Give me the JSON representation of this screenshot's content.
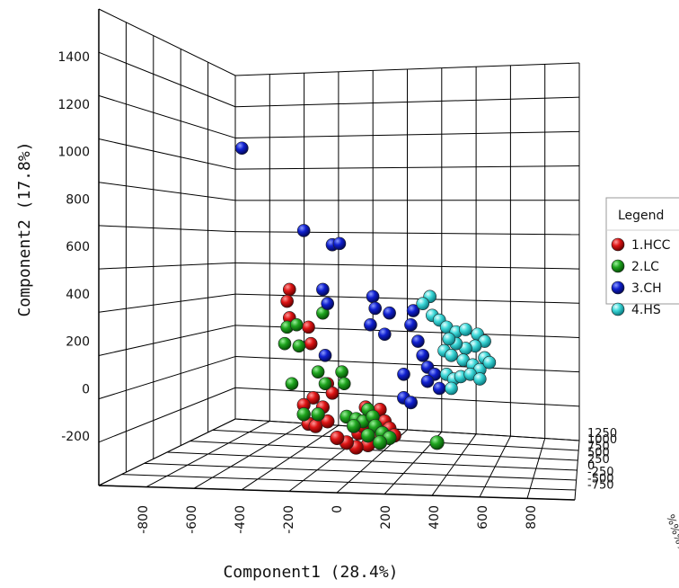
{
  "chart_data": {
    "type": "scatter",
    "subtype": "3d-scatter",
    "title": "",
    "xlabel": "Component1 (28.4%)",
    "ylabel": "Component2 (17.8%)",
    "zlabel": "",
    "x_ticks": [
      "-800",
      "-600",
      "-400",
      "-200",
      "0",
      "200",
      "400",
      "600",
      "800"
    ],
    "y_ticks": [
      "1400",
      "1200",
      "1000",
      "800",
      "600",
      "400",
      "200",
      "0",
      "-200"
    ],
    "z_ticks": [
      "1250",
      "1000",
      "750",
      "500",
      "250",
      "0",
      "-250",
      "-500",
      "-750"
    ],
    "xlim": [
      -900,
      900
    ],
    "ylim": [
      -350,
      1500
    ],
    "grid": true,
    "legend": {
      "title": "Legend",
      "position": "right"
    },
    "series": [
      {
        "name": "1.HCC",
        "color": "#cc0000",
        "points": [
          {
            "x": -180,
            "y": 420
          },
          {
            "x": -190,
            "y": 370
          },
          {
            "x": -180,
            "y": 300
          },
          {
            "x": -100,
            "y": 260
          },
          {
            "x": -90,
            "y": 190
          },
          {
            "x": -20,
            "y": 20
          },
          {
            "x": 0,
            "y": -20
          },
          {
            "x": -80,
            "y": -40
          },
          {
            "x": -40,
            "y": -80
          },
          {
            "x": -120,
            "y": -70
          },
          {
            "x": -100,
            "y": -150
          },
          {
            "x": -70,
            "y": -160
          },
          {
            "x": -20,
            "y": -140
          },
          {
            "x": 140,
            "y": -80
          },
          {
            "x": 160,
            "y": -110
          },
          {
            "x": 200,
            "y": -90
          },
          {
            "x": 220,
            "y": -140
          },
          {
            "x": 240,
            "y": -170
          },
          {
            "x": 260,
            "y": -200
          },
          {
            "x": 180,
            "y": -210
          },
          {
            "x": 150,
            "y": -240
          },
          {
            "x": 100,
            "y": -250
          },
          {
            "x": 60,
            "y": -230
          },
          {
            "x": 20,
            "y": -210
          },
          {
            "x": 110,
            "y": -190
          },
          {
            "x": 130,
            "y": -160
          }
        ]
      },
      {
        "name": "2.LC",
        "color": "#1a9a1a",
        "points": [
          {
            "x": -190,
            "y": 260
          },
          {
            "x": -150,
            "y": 270
          },
          {
            "x": -200,
            "y": 190
          },
          {
            "x": -140,
            "y": 180
          },
          {
            "x": -40,
            "y": 320
          },
          {
            "x": -170,
            "y": 20
          },
          {
            "x": -60,
            "y": 70
          },
          {
            "x": -30,
            "y": 20
          },
          {
            "x": 40,
            "y": 70
          },
          {
            "x": 50,
            "y": 20
          },
          {
            "x": -120,
            "y": -110
          },
          {
            "x": -60,
            "y": -110
          },
          {
            "x": 60,
            "y": -120
          },
          {
            "x": 100,
            "y": -130
          },
          {
            "x": 130,
            "y": -140
          },
          {
            "x": 150,
            "y": -90
          },
          {
            "x": 170,
            "y": -120
          },
          {
            "x": 180,
            "y": -160
          },
          {
            "x": 210,
            "y": -190
          },
          {
            "x": 240,
            "y": -210
          },
          {
            "x": 200,
            "y": -230
          },
          {
            "x": 150,
            "y": -200
          },
          {
            "x": 90,
            "y": -160
          },
          {
            "x": 440,
            "y": -230
          }
        ]
      },
      {
        "name": "3.CH",
        "color": "#0a1ec8",
        "points": [
          {
            "x": -380,
            "y": 1020
          },
          {
            "x": -120,
            "y": 670
          },
          {
            "x": 0,
            "y": 610
          },
          {
            "x": 30,
            "y": 615
          },
          {
            "x": -40,
            "y": 420
          },
          {
            "x": -20,
            "y": 360
          },
          {
            "x": 170,
            "y": 390
          },
          {
            "x": 180,
            "y": 340
          },
          {
            "x": 160,
            "y": 270
          },
          {
            "x": 240,
            "y": 320
          },
          {
            "x": 220,
            "y": 230
          },
          {
            "x": -30,
            "y": 140
          },
          {
            "x": 340,
            "y": 330
          },
          {
            "x": 330,
            "y": 270
          },
          {
            "x": 360,
            "y": 200
          },
          {
            "x": 380,
            "y": 140
          },
          {
            "x": 400,
            "y": 90
          },
          {
            "x": 430,
            "y": 60
          },
          {
            "x": 400,
            "y": 30
          },
          {
            "x": 450,
            "y": 0
          },
          {
            "x": 300,
            "y": 60
          },
          {
            "x": 300,
            "y": -40
          },
          {
            "x": 330,
            "y": -60
          }
        ]
      },
      {
        "name": "4.HS",
        "color": "#33d4d4",
        "points": [
          {
            "x": 410,
            "y": 390
          },
          {
            "x": 380,
            "y": 360
          },
          {
            "x": 420,
            "y": 310
          },
          {
            "x": 450,
            "y": 290
          },
          {
            "x": 480,
            "y": 260
          },
          {
            "x": 520,
            "y": 240
          },
          {
            "x": 560,
            "y": 250
          },
          {
            "x": 610,
            "y": 230
          },
          {
            "x": 640,
            "y": 200
          },
          {
            "x": 600,
            "y": 180
          },
          {
            "x": 560,
            "y": 170
          },
          {
            "x": 520,
            "y": 190
          },
          {
            "x": 490,
            "y": 210
          },
          {
            "x": 470,
            "y": 160
          },
          {
            "x": 500,
            "y": 140
          },
          {
            "x": 550,
            "y": 120
          },
          {
            "x": 590,
            "y": 100
          },
          {
            "x": 620,
            "y": 80
          },
          {
            "x": 640,
            "y": 130
          },
          {
            "x": 660,
            "y": 110
          },
          {
            "x": 480,
            "y": 60
          },
          {
            "x": 510,
            "y": 40
          },
          {
            "x": 540,
            "y": 50
          },
          {
            "x": 580,
            "y": 60
          },
          {
            "x": 620,
            "y": 40
          },
          {
            "x": 500,
            "y": 0
          }
        ]
      }
    ]
  }
}
